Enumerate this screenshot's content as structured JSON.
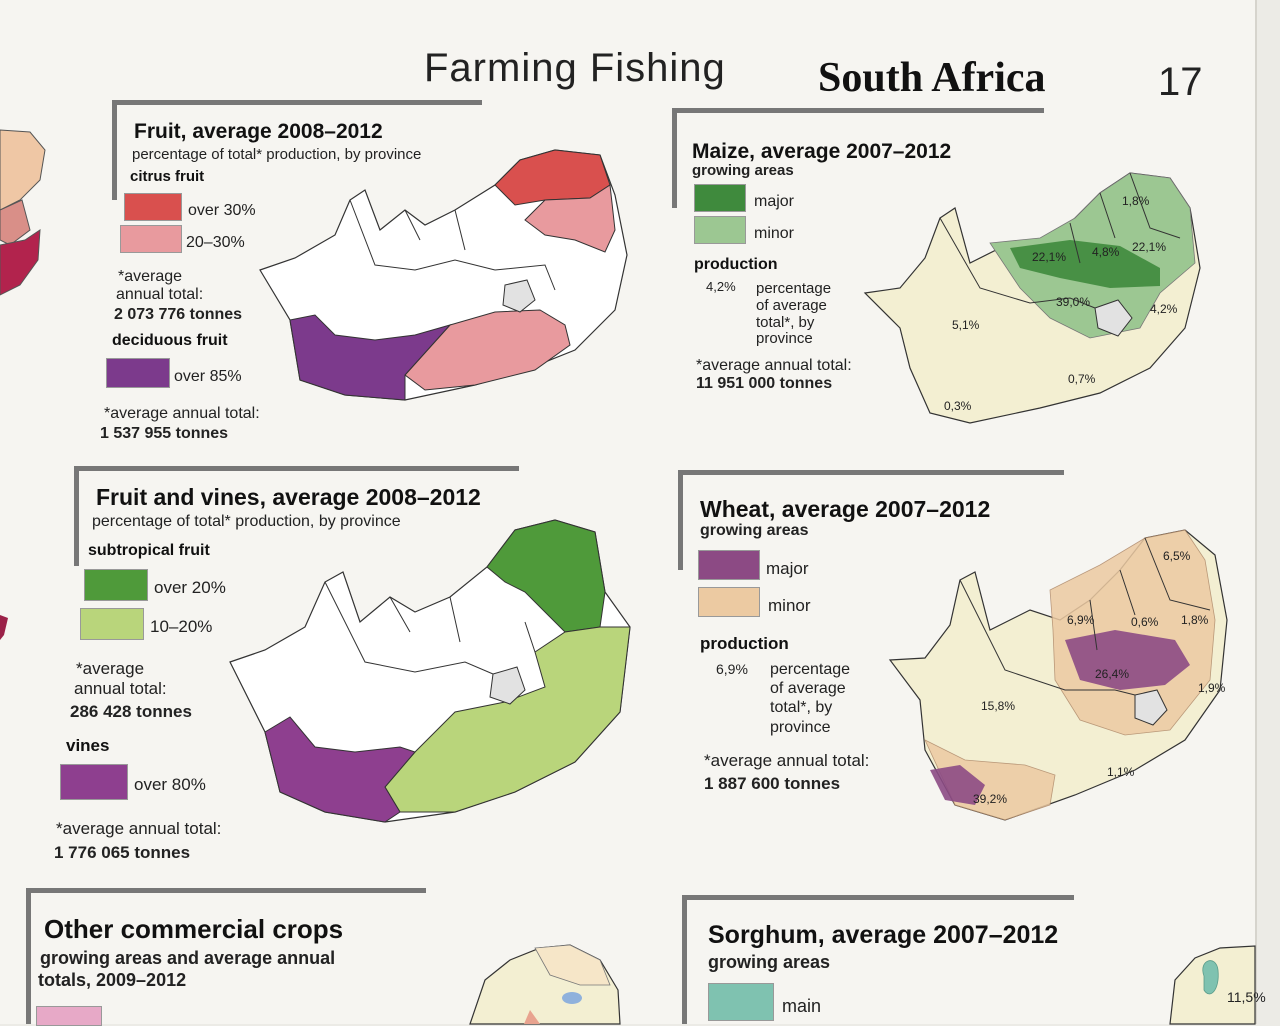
{
  "header": {
    "topics": "Farming  Fishing",
    "title": "South Africa",
    "page_number": "17"
  },
  "panels": {
    "fruit": {
      "title": "Fruit, average 2008–2012",
      "subtitle": "percentage of total* production, by province",
      "citrus_label": "citrus fruit",
      "legend_over30": "over 30%",
      "legend_20_30": "20–30%",
      "citrus_note_line1": "*average",
      "citrus_note_line2": "annual total:",
      "citrus_total": "2 073 776 tonnes",
      "deciduous_label": "deciduous fruit",
      "legend_over85": "over 85%",
      "deciduous_note": "*average annual total:",
      "deciduous_total": "1 537 955 tonnes",
      "colors": {
        "over30": "#d9504e",
        "c20_30": "#e89a9e",
        "deciduous": "#7c3a8c"
      }
    },
    "maize": {
      "title": "Maize, average 2007–2012",
      "subtitle": "growing areas",
      "legend_major": "major",
      "legend_minor": "minor",
      "production_label": "production",
      "example_value": "4,2%",
      "example_desc": [
        "percentage",
        "of average",
        "total*, by",
        "province"
      ],
      "note": "*average annual total:",
      "total": "11 951 000 tonnes",
      "map_values": [
        "1,8%",
        "22,1%",
        "4,8%",
        "22,1%",
        "39,0%",
        "4,2%",
        "5,1%",
        "0,7%",
        "0,3%"
      ],
      "colors": {
        "major": "#3f8a3d",
        "minor": "#9cc792"
      }
    },
    "fruit_vines": {
      "title": "Fruit and vines, average 2008–2012",
      "subtitle": "percentage of total* production, by province",
      "subtropical_label": "subtropical fruit",
      "legend_over20": "over 20%",
      "legend_10_20": "10–20%",
      "note_line1": "*average",
      "note_line2": "annual total:",
      "subtropical_total": "286 428 tonnes",
      "vines_label": "vines",
      "legend_over80": "over 80%",
      "vines_note": "*average annual total:",
      "vines_total": "1 776 065 tonnes",
      "colors": {
        "over20": "#4f9a3a",
        "c10_20": "#b9d57b",
        "vines": "#8e3f8f"
      }
    },
    "wheat": {
      "title": "Wheat, average 2007–2012",
      "subtitle": "growing areas",
      "legend_major": "major",
      "legend_minor": "minor",
      "production_label": "production",
      "example_value": "6,9%",
      "example_desc": [
        "percentage",
        "of average",
        "total*, by",
        "province"
      ],
      "note": "*average annual total:",
      "total": "1 887 600 tonnes",
      "map_values": [
        "6,5%",
        "6,9%",
        "0,6%",
        "1,8%",
        "26,4%",
        "1,9%",
        "15,8%",
        "1,1%",
        "39,2%"
      ],
      "colors": {
        "major": "#8c4a84",
        "minor": "#eccaa2"
      }
    },
    "other_crops": {
      "title": "Other commercial crops",
      "subtitle_line1": "growing areas and average annual",
      "subtitle_line2": "totals, 2009–2012"
    },
    "sorghum": {
      "title": "Sorghum, average 2007–2012",
      "subtitle": "growing areas",
      "legend_main": "main",
      "map_value": "11,5%",
      "colors": {
        "main": "#7fc2b0"
      }
    }
  },
  "map_colors": {
    "base": "#f3efd2",
    "border": "#333333",
    "lesotho": "#e2e2e2",
    "white": "#ffffff"
  }
}
